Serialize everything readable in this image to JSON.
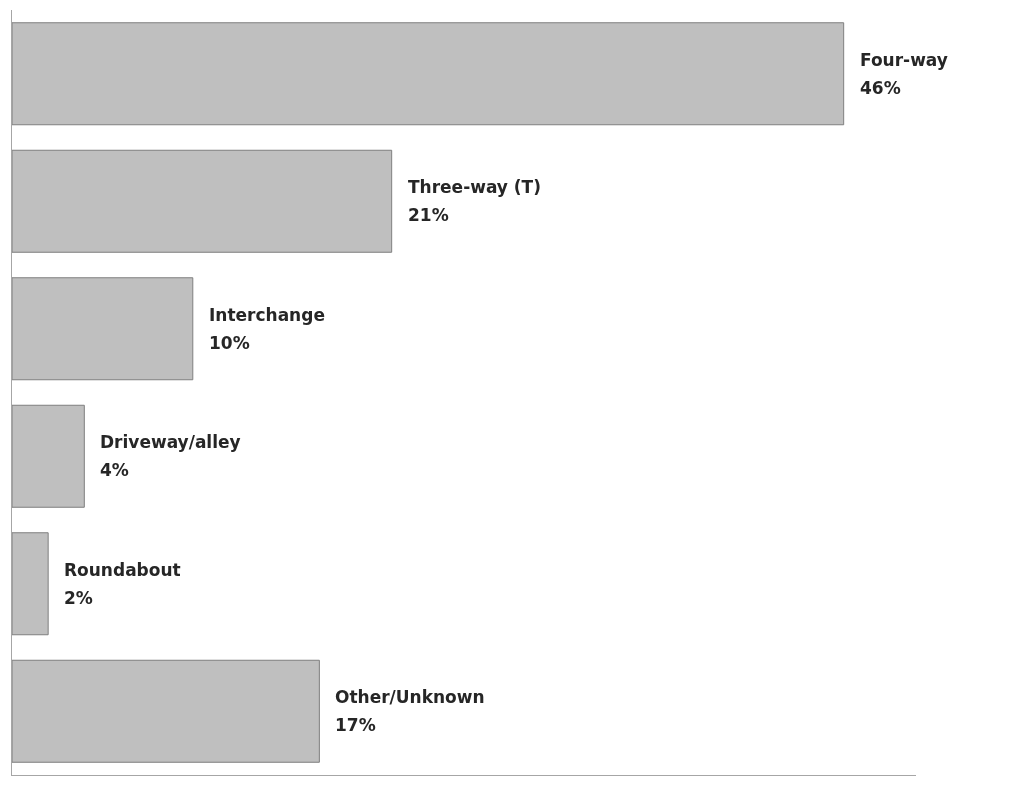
{
  "chart_data": {
    "type": "bar",
    "orientation": "horizontal",
    "categories": [
      "Four-way",
      "Three-way (T)",
      "Interchange",
      "Driveway/alley",
      "Roundabout",
      "Other/Unknown"
    ],
    "values": [
      46,
      21,
      10,
      4,
      2,
      17
    ],
    "value_labels": [
      "46%",
      "21%",
      "10%",
      "4%",
      "2%",
      "17%"
    ],
    "color": "#bfbfbf",
    "xlim": [
      0,
      50
    ],
    "tick_labels": false
  }
}
